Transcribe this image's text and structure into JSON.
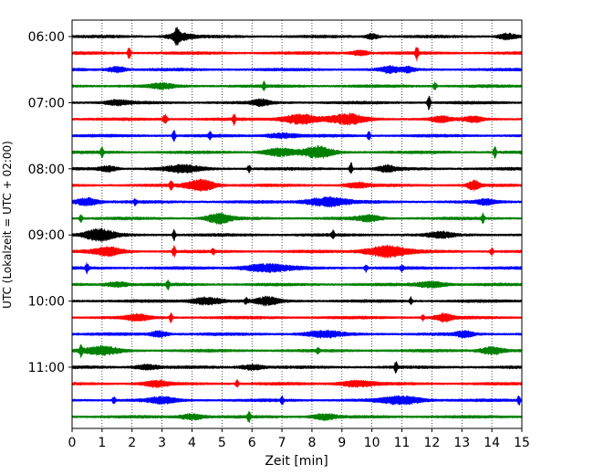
{
  "chart_data": {
    "type": "line",
    "title": "",
    "xlabel": "Zeit  [min]",
    "ylabel": "UTC (Lokalzeit = UTC + 02:00)",
    "xlim": [
      0,
      15
    ],
    "x_ticks": [
      0,
      1,
      2,
      3,
      4,
      5,
      6,
      7,
      8,
      9,
      10,
      11,
      12,
      13,
      14,
      15
    ],
    "x_tick_labels": [
      "0",
      "1",
      "2",
      "3",
      "4",
      "5",
      "6",
      "7",
      "8",
      "9",
      "10",
      "11",
      "12",
      "13",
      "14",
      "15"
    ],
    "y_tick_labels": [
      "06:00",
      "07:00",
      "08:00",
      "09:00",
      "10:00",
      "11:00"
    ],
    "y_tick_rows": [
      0,
      4,
      8,
      12,
      16,
      20
    ],
    "grid": "vertical dotted",
    "trace_minutes": 15,
    "trace_colors": [
      "#000000",
      "#ff0000",
      "#0000ff",
      "#008000"
    ],
    "series": [
      {
        "start": "06:00",
        "color": "#000000",
        "events": [
          {
            "t": 3.5,
            "a": 6,
            "w": 0.08
          },
          {
            "t": 3.6,
            "a": 4,
            "w": 0.4
          },
          {
            "t": 10.0,
            "a": 3,
            "w": 0.2
          },
          {
            "t": 14.5,
            "a": 3,
            "w": 0.3
          }
        ]
      },
      {
        "start": "06:15",
        "color": "#ff0000",
        "events": [
          {
            "t": 1.9,
            "a": 7,
            "w": 0.05
          },
          {
            "t": 11.5,
            "a": 8,
            "w": 0.05
          },
          {
            "t": 9.6,
            "a": 2.5,
            "w": 0.3
          }
        ]
      },
      {
        "start": "06:30",
        "color": "#0000ff",
        "events": [
          {
            "t": 1.5,
            "a": 3,
            "w": 0.3
          },
          {
            "t": 10.6,
            "a": 3,
            "w": 0.3
          },
          {
            "t": 11.2,
            "a": 2.5,
            "w": 0.2
          }
        ]
      },
      {
        "start": "06:45",
        "color": "#008000",
        "events": [
          {
            "t": 6.4,
            "a": 4,
            "w": 0.05
          },
          {
            "t": 3.0,
            "a": 2.5,
            "w": 0.4
          },
          {
            "t": 12.1,
            "a": 4,
            "w": 0.06
          }
        ]
      },
      {
        "start": "07:00",
        "color": "#000000",
        "events": [
          {
            "t": 11.9,
            "a": 8,
            "w": 0.05
          },
          {
            "t": 6.3,
            "a": 3,
            "w": 0.3
          },
          {
            "t": 1.5,
            "a": 2.5,
            "w": 0.4
          }
        ]
      },
      {
        "start": "07:15",
        "color": "#ff0000",
        "events": [
          {
            "t": 3.1,
            "a": 5,
            "w": 0.08
          },
          {
            "t": 5.4,
            "a": 6,
            "w": 0.05
          },
          {
            "t": 7.6,
            "a": 5,
            "w": 0.6
          },
          {
            "t": 9.2,
            "a": 5,
            "w": 0.6
          },
          {
            "t": 12.3,
            "a": 3,
            "w": 0.3
          },
          {
            "t": 13.4,
            "a": 3,
            "w": 0.3
          }
        ]
      },
      {
        "start": "07:30",
        "color": "#0000ff",
        "events": [
          {
            "t": 3.4,
            "a": 6,
            "w": 0.05
          },
          {
            "t": 4.6,
            "a": 4,
            "w": 0.05
          },
          {
            "t": 9.9,
            "a": 5,
            "w": 0.05
          },
          {
            "t": 7.0,
            "a": 2.5,
            "w": 0.5
          }
        ]
      },
      {
        "start": "07:45",
        "color": "#008000",
        "events": [
          {
            "t": 1.0,
            "a": 5,
            "w": 0.05
          },
          {
            "t": 6.9,
            "a": 4,
            "w": 0.5
          },
          {
            "t": 8.2,
            "a": 6,
            "w": 0.5
          },
          {
            "t": 14.1,
            "a": 6,
            "w": 0.05
          }
        ]
      },
      {
        "start": "08:00",
        "color": "#000000",
        "events": [
          {
            "t": 1.2,
            "a": 3,
            "w": 0.3
          },
          {
            "t": 3.7,
            "a": 3.5,
            "w": 0.6
          },
          {
            "t": 5.9,
            "a": 4,
            "w": 0.05
          },
          {
            "t": 9.3,
            "a": 7,
            "w": 0.05
          },
          {
            "t": 10.5,
            "a": 3,
            "w": 0.3
          }
        ]
      },
      {
        "start": "08:15",
        "color": "#ff0000",
        "events": [
          {
            "t": 3.3,
            "a": 6,
            "w": 0.05
          },
          {
            "t": 4.3,
            "a": 6,
            "w": 0.5
          },
          {
            "t": 13.4,
            "a": 5,
            "w": 0.2
          },
          {
            "t": 9.5,
            "a": 2.5,
            "w": 0.4
          }
        ]
      },
      {
        "start": "08:30",
        "color": "#0000ff",
        "events": [
          {
            "t": 0.5,
            "a": 4,
            "w": 0.4
          },
          {
            "t": 8.5,
            "a": 5,
            "w": 0.7
          },
          {
            "t": 2.1,
            "a": 3,
            "w": 0.05
          },
          {
            "t": 13.8,
            "a": 2.5,
            "w": 0.3
          }
        ]
      },
      {
        "start": "08:45",
        "color": "#008000",
        "events": [
          {
            "t": 0.3,
            "a": 4,
            "w": 0.05
          },
          {
            "t": 4.9,
            "a": 5,
            "w": 0.4
          },
          {
            "t": 13.7,
            "a": 5,
            "w": 0.05
          },
          {
            "t": 9.9,
            "a": 3,
            "w": 0.4
          }
        ]
      },
      {
        "start": "09:00",
        "color": "#000000",
        "events": [
          {
            "t": 0.9,
            "a": 6,
            "w": 0.5
          },
          {
            "t": 3.4,
            "a": 6,
            "w": 0.05
          },
          {
            "t": 8.7,
            "a": 5,
            "w": 0.05
          },
          {
            "t": 12.3,
            "a": 3,
            "w": 0.4
          }
        ]
      },
      {
        "start": "09:15",
        "color": "#ff0000",
        "events": [
          {
            "t": 1.2,
            "a": 4,
            "w": 0.5
          },
          {
            "t": 3.4,
            "a": 6,
            "w": 0.05
          },
          {
            "t": 4.7,
            "a": 3,
            "w": 0.05
          },
          {
            "t": 10.5,
            "a": 6,
            "w": 0.7
          },
          {
            "t": 14.0,
            "a": 4,
            "w": 0.05
          }
        ]
      },
      {
        "start": "09:30",
        "color": "#0000ff",
        "events": [
          {
            "t": 0.5,
            "a": 5,
            "w": 0.05
          },
          {
            "t": 6.5,
            "a": 4,
            "w": 0.8
          },
          {
            "t": 9.8,
            "a": 4,
            "w": 0.05
          },
          {
            "t": 11.0,
            "a": 3,
            "w": 0.05
          }
        ]
      },
      {
        "start": "09:45",
        "color": "#008000",
        "events": [
          {
            "t": 3.2,
            "a": 5,
            "w": 0.05
          },
          {
            "t": 1.5,
            "a": 2.5,
            "w": 0.4
          },
          {
            "t": 12.0,
            "a": 3,
            "w": 0.5
          }
        ]
      },
      {
        "start": "10:00",
        "color": "#000000",
        "events": [
          {
            "t": 4.5,
            "a": 4,
            "w": 0.5
          },
          {
            "t": 6.5,
            "a": 4,
            "w": 0.4
          },
          {
            "t": 11.3,
            "a": 4,
            "w": 0.05
          },
          {
            "t": 5.8,
            "a": 3,
            "w": 0.05
          }
        ]
      },
      {
        "start": "10:15",
        "color": "#ff0000",
        "events": [
          {
            "t": 3.3,
            "a": 5,
            "w": 0.05
          },
          {
            "t": 2.2,
            "a": 3,
            "w": 0.4
          },
          {
            "t": 12.4,
            "a": 4,
            "w": 0.3
          },
          {
            "t": 11.7,
            "a": 3,
            "w": 0.05
          }
        ]
      },
      {
        "start": "10:30",
        "color": "#0000ff",
        "events": [
          {
            "t": 2.9,
            "a": 3,
            "w": 0.3
          },
          {
            "t": 8.4,
            "a": 3,
            "w": 0.6
          },
          {
            "t": 13.1,
            "a": 3,
            "w": 0.3
          }
        ]
      },
      {
        "start": "10:45",
        "color": "#008000",
        "events": [
          {
            "t": 0.3,
            "a": 6,
            "w": 0.05
          },
          {
            "t": 1.0,
            "a": 4,
            "w": 0.6
          },
          {
            "t": 14.0,
            "a": 4,
            "w": 0.4
          },
          {
            "t": 8.2,
            "a": 3,
            "w": 0.05
          }
        ]
      },
      {
        "start": "11:00",
        "color": "#000000",
        "events": [
          {
            "t": 10.8,
            "a": 6,
            "w": 0.05
          },
          {
            "t": 2.5,
            "a": 2.5,
            "w": 0.4
          },
          {
            "t": 6.0,
            "a": 2.5,
            "w": 0.4
          }
        ]
      },
      {
        "start": "11:15",
        "color": "#ff0000",
        "events": [
          {
            "t": 2.8,
            "a": 3,
            "w": 0.4
          },
          {
            "t": 5.5,
            "a": 4,
            "w": 0.05
          },
          {
            "t": 9.5,
            "a": 3,
            "w": 0.6
          }
        ]
      },
      {
        "start": "11:30",
        "color": "#0000ff",
        "events": [
          {
            "t": 1.4,
            "a": 4,
            "w": 0.05
          },
          {
            "t": 3.0,
            "a": 3,
            "w": 0.5
          },
          {
            "t": 7.0,
            "a": 5,
            "w": 0.05
          },
          {
            "t": 11.0,
            "a": 4,
            "w": 0.7
          },
          {
            "t": 14.9,
            "a": 5,
            "w": 0.05
          }
        ]
      },
      {
        "start": "11:45",
        "color": "#008000",
        "events": [
          {
            "t": 5.9,
            "a": 6,
            "w": 0.05
          },
          {
            "t": 4.0,
            "a": 3,
            "w": 0.4
          },
          {
            "t": 8.4,
            "a": 3,
            "w": 0.4
          }
        ]
      }
    ]
  }
}
